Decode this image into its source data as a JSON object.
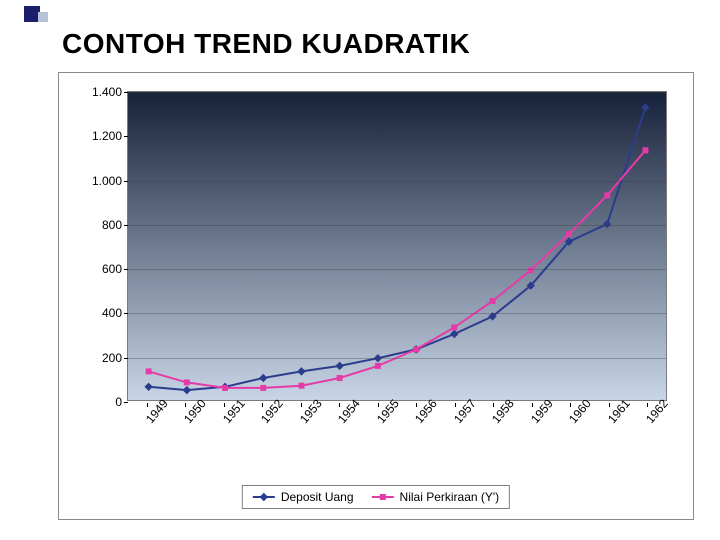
{
  "title": "CONTOH TREND KUADRATIK",
  "chart": {
    "type": "line",
    "plot_background_gradient": [
      "#16213a",
      "#c8d5e6"
    ],
    "grid_color": "rgba(60,60,60,0.35)",
    "border_color": "#7a7a7a",
    "font_family": "Arial",
    "axis_label_fontsize": 12,
    "y": {
      "min": 0,
      "max": 1400,
      "tick_step": 200,
      "ticks": [
        0,
        200,
        400,
        600,
        800,
        1000,
        1200,
        1400
      ],
      "labels": [
        "0",
        "200",
        "400",
        "600",
        "800",
        "1.000",
        "1.200",
        "1.400"
      ]
    },
    "x": {
      "categories": [
        "1949",
        "1950",
        "1951",
        "1952",
        "1953",
        "1954",
        "1955",
        "1956",
        "1957",
        "1958",
        "1959",
        "1960",
        "1961",
        "1962"
      ],
      "label_rotation_deg": -50
    },
    "series": [
      {
        "name": "Deposit Uang",
        "color": "#2b3c8d",
        "marker": "diamond",
        "marker_size": 6,
        "line_width": 2,
        "values": [
          60,
          45,
          60,
          100,
          130,
          155,
          190,
          230,
          300,
          380,
          520,
          720,
          800,
          1330
        ]
      },
      {
        "name": "Nilai Perkiraan (Y')",
        "color": "#e53ba6",
        "marker": "square",
        "marker_size": 6,
        "line_width": 2,
        "values": [
          130,
          80,
          55,
          55,
          65,
          100,
          155,
          230,
          330,
          450,
          590,
          755,
          930,
          1135
        ]
      }
    ],
    "legend": {
      "position": "bottom",
      "border_color": "#808080",
      "background": "#ffffff",
      "fontsize": 12
    }
  }
}
